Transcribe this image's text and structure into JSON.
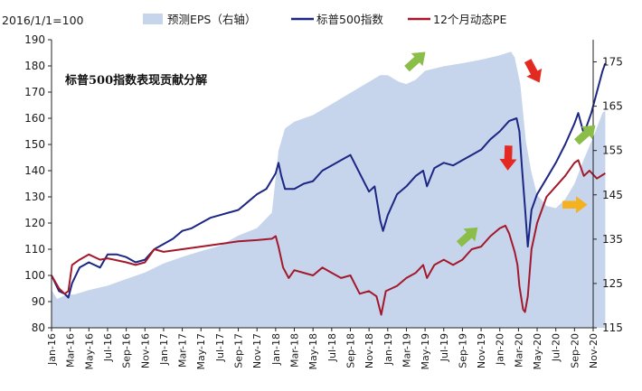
{
  "chart_data": {
    "type": "line",
    "title": "标普500指数表现贡献分解",
    "base_note": "2016/1/1=100",
    "left_axis": {
      "min": 80,
      "max": 190,
      "ticks": [
        80,
        90,
        100,
        110,
        120,
        130,
        140,
        150,
        160,
        170,
        180,
        190
      ]
    },
    "right_axis": {
      "min": 115,
      "max": 180,
      "ticks": [
        115,
        125,
        135,
        145,
        155,
        165,
        175
      ]
    },
    "x": [
      "Jan-16",
      "Mar-16",
      "May-16",
      "Jul-16",
      "Sep-16",
      "Nov-16",
      "Jan-17",
      "Mar-17",
      "May-17",
      "Jul-17",
      "Sep-17",
      "Nov-17",
      "Jan-18",
      "Mar-18",
      "May-18",
      "Jul-18",
      "Sep-18",
      "Nov-18",
      "Jan-19",
      "Mar-19",
      "May-19",
      "Jul-19",
      "Sep-19",
      "Nov-19",
      "Jan-20",
      "Mar-20",
      "May-20",
      "Jul-20",
      "Sep-20",
      "Nov-20"
    ],
    "series": [
      {
        "name": "预测EPS（右轴）",
        "type": "area",
        "axis": "right",
        "color": "#c6d5ec",
        "points": [
          [
            0,
            123.5
          ],
          [
            0.3,
            121.5
          ],
          [
            0.8,
            122.5
          ],
          [
            1.2,
            122.5
          ],
          [
            2,
            123.5
          ],
          [
            3,
            124.5
          ],
          [
            4,
            126
          ],
          [
            5,
            127.5
          ],
          [
            6,
            129.5
          ],
          [
            7,
            131
          ],
          [
            8,
            132.3
          ],
          [
            9,
            133.5
          ],
          [
            10,
            135.8
          ],
          [
            11,
            137.5
          ],
          [
            11.8,
            141
          ],
          [
            12.15,
            155
          ],
          [
            12.5,
            160
          ],
          [
            13,
            161.5
          ],
          [
            14,
            163
          ],
          [
            15,
            165.5
          ],
          [
            16,
            168
          ],
          [
            17,
            170.5
          ],
          [
            17.6,
            172
          ],
          [
            18,
            172
          ],
          [
            18.6,
            170.5
          ],
          [
            19,
            170
          ],
          [
            19.5,
            171
          ],
          [
            20,
            173
          ],
          [
            21,
            174
          ],
          [
            22,
            174.7
          ],
          [
            23,
            175.5
          ],
          [
            24,
            176.5
          ],
          [
            24.6,
            177.3
          ],
          [
            24.8,
            176
          ],
          [
            25.1,
            170
          ],
          [
            25.4,
            157
          ],
          [
            25.7,
            150
          ],
          [
            26,
            145
          ],
          [
            26.5,
            142.5
          ],
          [
            27,
            142
          ],
          [
            27.5,
            144
          ],
          [
            28,
            147.5
          ],
          [
            28.5,
            153
          ],
          [
            29,
            158
          ],
          [
            29.5,
            163.5
          ],
          [
            29.65,
            164
          ]
        ]
      },
      {
        "name": "标普500指数",
        "type": "line",
        "axis": "left",
        "color": "#1c2683",
        "points": [
          [
            0,
            100
          ],
          [
            0.4,
            94
          ],
          [
            0.7,
            93
          ],
          [
            0.9,
            91.5
          ],
          [
            1.1,
            97
          ],
          [
            1.5,
            103
          ],
          [
            2,
            105
          ],
          [
            2.6,
            103
          ],
          [
            3,
            108
          ],
          [
            3.5,
            108
          ],
          [
            4,
            107
          ],
          [
            4.5,
            105
          ],
          [
            5,
            106
          ],
          [
            5.5,
            110
          ],
          [
            6,
            112
          ],
          [
            6.5,
            114
          ],
          [
            7,
            117
          ],
          [
            7.5,
            118
          ],
          [
            8,
            120
          ],
          [
            8.5,
            122
          ],
          [
            9,
            123
          ],
          [
            9.5,
            124
          ],
          [
            10,
            125
          ],
          [
            10.5,
            128
          ],
          [
            11,
            131
          ],
          [
            11.5,
            133
          ],
          [
            12,
            139
          ],
          [
            12.15,
            143
          ],
          [
            12.3,
            138
          ],
          [
            12.5,
            133
          ],
          [
            13,
            133
          ],
          [
            13.5,
            135
          ],
          [
            14,
            136
          ],
          [
            14.5,
            140
          ],
          [
            15,
            142
          ],
          [
            15.5,
            144
          ],
          [
            16,
            146
          ],
          [
            16.5,
            139
          ],
          [
            17,
            132
          ],
          [
            17.3,
            134
          ],
          [
            17.6,
            121
          ],
          [
            17.75,
            117
          ],
          [
            18,
            123
          ],
          [
            18.5,
            131
          ],
          [
            19,
            134
          ],
          [
            19.5,
            138
          ],
          [
            19.9,
            140
          ],
          [
            20.1,
            134
          ],
          [
            20.5,
            141
          ],
          [
            21,
            143
          ],
          [
            21.5,
            142
          ],
          [
            22,
            144
          ],
          [
            22.5,
            146
          ],
          [
            23,
            148
          ],
          [
            23.5,
            152
          ],
          [
            24,
            155
          ],
          [
            24.5,
            159
          ],
          [
            24.9,
            160
          ],
          [
            25.05,
            155
          ],
          [
            25.2,
            140
          ],
          [
            25.35,
            126
          ],
          [
            25.5,
            111
          ],
          [
            25.7,
            125
          ],
          [
            26,
            131
          ],
          [
            26.5,
            137
          ],
          [
            27,
            143
          ],
          [
            27.5,
            150
          ],
          [
            28,
            158
          ],
          [
            28.2,
            162
          ],
          [
            28.5,
            154
          ],
          [
            28.9,
            162
          ],
          [
            29.2,
            170
          ],
          [
            29.5,
            178
          ],
          [
            29.65,
            181
          ]
        ]
      },
      {
        "name": "12个月动态PE",
        "type": "line",
        "axis": "left",
        "color": "#a3192b",
        "points": [
          [
            0,
            100
          ],
          [
            0.4,
            95
          ],
          [
            0.7,
            93
          ],
          [
            0.9,
            94
          ],
          [
            1.1,
            104
          ],
          [
            1.5,
            106
          ],
          [
            2,
            108
          ],
          [
            2.6,
            106
          ],
          [
            3,
            106.5
          ],
          [
            4,
            105
          ],
          [
            4.5,
            104
          ],
          [
            5,
            105
          ],
          [
            5.5,
            110
          ],
          [
            6,
            109
          ],
          [
            7,
            110
          ],
          [
            8,
            111
          ],
          [
            9,
            112
          ],
          [
            10,
            113
          ],
          [
            11,
            113.5
          ],
          [
            11.8,
            114
          ],
          [
            12,
            115
          ],
          [
            12.15,
            111
          ],
          [
            12.4,
            103
          ],
          [
            12.7,
            99
          ],
          [
            13,
            102
          ],
          [
            13.5,
            101
          ],
          [
            14,
            100
          ],
          [
            14.5,
            103
          ],
          [
            15,
            101
          ],
          [
            15.5,
            99
          ],
          [
            16,
            100
          ],
          [
            16.5,
            93
          ],
          [
            17,
            94
          ],
          [
            17.4,
            92
          ],
          [
            17.65,
            85
          ],
          [
            17.9,
            94
          ],
          [
            18.5,
            96
          ],
          [
            19,
            99
          ],
          [
            19.5,
            101
          ],
          [
            19.9,
            104
          ],
          [
            20.1,
            99
          ],
          [
            20.5,
            104
          ],
          [
            21,
            106
          ],
          [
            21.5,
            104
          ],
          [
            22,
            106
          ],
          [
            22.5,
            110
          ],
          [
            23,
            111
          ],
          [
            23.5,
            115
          ],
          [
            24,
            118
          ],
          [
            24.3,
            119
          ],
          [
            24.5,
            116
          ],
          [
            24.8,
            109
          ],
          [
            24.95,
            104
          ],
          [
            25.05,
            96
          ],
          [
            25.25,
            87
          ],
          [
            25.35,
            86
          ],
          [
            25.5,
            92
          ],
          [
            25.7,
            110
          ],
          [
            26,
            120
          ],
          [
            26.5,
            130
          ],
          [
            27,
            134
          ],
          [
            27.5,
            138
          ],
          [
            28,
            143
          ],
          [
            28.2,
            144
          ],
          [
            28.5,
            138
          ],
          [
            28.8,
            140
          ],
          [
            29.2,
            137
          ],
          [
            29.65,
            139
          ]
        ]
      }
    ],
    "legend": [
      {
        "label": "预测EPS（右轴）",
        "kind": "area",
        "color": "#c6d5ec"
      },
      {
        "label": "标普500指数",
        "kind": "line",
        "color": "#1c2683"
      },
      {
        "label": "12个月动态PE",
        "kind": "line",
        "color": "#a3192b"
      }
    ],
    "annotations": [
      {
        "kind": "arrow",
        "direction": "up-right",
        "color": "#8bbd49",
        "x": 19.5,
        "axis": "left",
        "y": 182
      },
      {
        "kind": "arrow",
        "direction": "down-right",
        "color": "#e32a22",
        "x": 25.8,
        "axis": "left",
        "y": 178
      },
      {
        "kind": "arrow",
        "direction": "up-right",
        "color": "#8bbd49",
        "x": 28.6,
        "axis": "left",
        "y": 154
      },
      {
        "kind": "arrow",
        "direction": "down",
        "color": "#e32a22",
        "x": 24.45,
        "axis": "left",
        "y": 145
      },
      {
        "kind": "arrow",
        "direction": "up-right",
        "color": "#8bbd49",
        "x": 22.3,
        "axis": "left",
        "y": 115
      },
      {
        "kind": "arrow",
        "direction": "right",
        "color": "#f4b221",
        "x": 28.0,
        "axis": "left",
        "y": 127
      }
    ]
  }
}
